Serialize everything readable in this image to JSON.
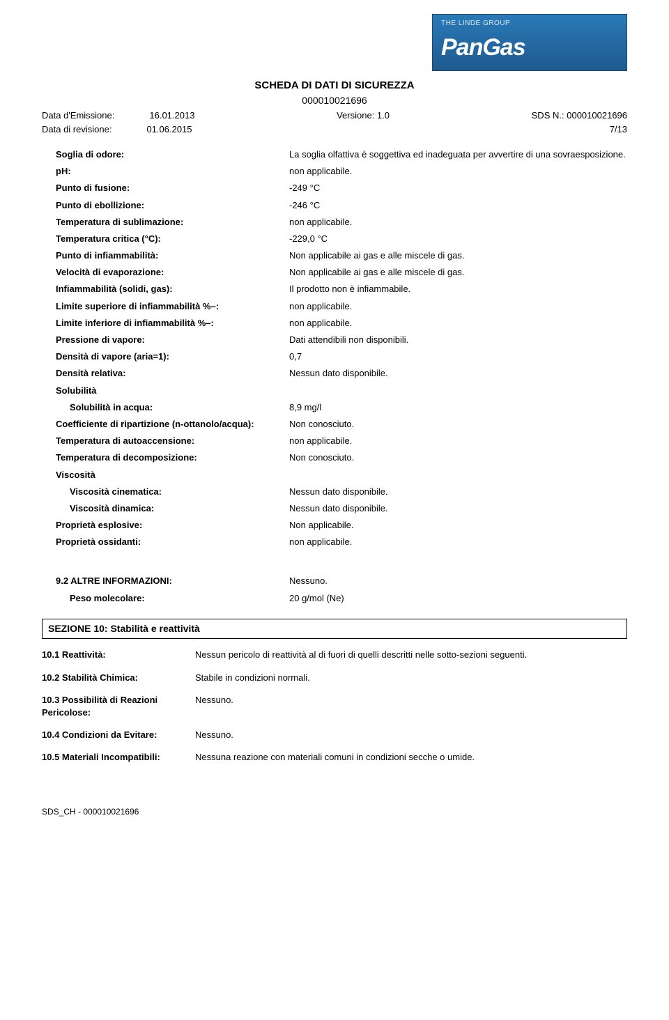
{
  "logo": {
    "tagline": "THE LINDE GROUP",
    "brand": "PanGas"
  },
  "header": {
    "title": "SCHEDA DI DATI DI SICUREZZA",
    "number": "000010021696",
    "issue_label": "Data d'Emissione:",
    "issue_value": "16.01.2013",
    "rev_label": "Data di revisione:",
    "rev_value": "01.06.2015",
    "version_label": "Versione:",
    "version_value": "1.0",
    "sds_label": "SDS N.:",
    "sds_value": "000010021696",
    "page": "7/13"
  },
  "properties": [
    {
      "label": "Soglia di odore:",
      "value": "La soglia olfattiva è soggettiva ed inadeguata per avvertire di una sovraesposizione."
    },
    {
      "label": "pH:",
      "value": "non applicabile."
    },
    {
      "label": "Punto di fusione:",
      "value": "-249 °C"
    },
    {
      "label": "Punto di ebollizione:",
      "value": "-246 °C"
    },
    {
      "label": "Temperatura di sublimazione:",
      "value": "non applicabile."
    },
    {
      "label": "Temperatura critica (°C):",
      "value": "-229,0 °C"
    },
    {
      "label": "Punto di infiammabilità:",
      "value": "Non applicabile ai gas e alle miscele di gas."
    },
    {
      "label": "Velocità di evaporazione:",
      "value": "Non applicabile ai gas e alle miscele di gas."
    },
    {
      "label": "Infiammabilità (solidi, gas):",
      "value": "Il prodotto non è infiammabile."
    },
    {
      "label": "Limite superiore di infiammabilità %–:",
      "value": "non applicabile."
    },
    {
      "label": "Limite inferiore di infiammabilità %–:",
      "value": "non applicabile."
    },
    {
      "label": "Pressione di vapore:",
      "value": "Dati attendibili non disponibili."
    },
    {
      "label": "Densità di vapore (aria=1):",
      "value": "0,7"
    },
    {
      "label": "Densità relativa:",
      "value": "Nessun dato disponibile."
    },
    {
      "label": "Solubilità",
      "value": "",
      "header": true
    },
    {
      "label": "Solubilità in acqua:",
      "value": "8,9 mg/l",
      "indent": true
    },
    {
      "label": "Coefficiente di ripartizione (n-ottanolo/acqua):",
      "value": "Non conosciuto."
    },
    {
      "label": "Temperatura di autoaccensione:",
      "value": "non applicabile."
    },
    {
      "label": "Temperatura di decomposizione:",
      "value": "Non conosciuto."
    },
    {
      "label": "Viscosità",
      "value": "",
      "header": true
    },
    {
      "label": "Viscosità cinematica:",
      "value": "Nessun dato disponibile.",
      "indent": true
    },
    {
      "label": "Viscosità dinamica:",
      "value": "Nessun dato disponibile.",
      "indent": true
    },
    {
      "label": "Proprietà esplosive:",
      "value": "Non applicabile."
    },
    {
      "label": "Proprietà ossidanti:",
      "value": "non applicabile."
    }
  ],
  "other_info": {
    "heading": "9.2 ALTRE INFORMAZIONI:",
    "heading_value": "Nessuno.",
    "mw_label": "Peso molecolare:",
    "mw_value": "20 g/mol (Ne)"
  },
  "section10": {
    "title": "SEZIONE 10: Stabilità e reattività",
    "items": [
      {
        "label": "10.1 Reattività:",
        "value": "Nessun pericolo di reattività al di fuori di quelli descritti nelle sotto-sezioni seguenti."
      },
      {
        "label": "10.2 Stabilità Chimica:",
        "value": "Stabile in condizioni normali."
      },
      {
        "label": "10.3 Possibilità di Reazioni Pericolose:",
        "value": "Nessuno."
      },
      {
        "label": "10.4 Condizioni da Evitare:",
        "value": "Nessuno."
      },
      {
        "label": "10.5 Materiali Incompatibili:",
        "value": "Nessuna reazione con materiali comuni in condizioni secche o umide."
      }
    ]
  },
  "footer": "SDS_CH - 000010021696"
}
